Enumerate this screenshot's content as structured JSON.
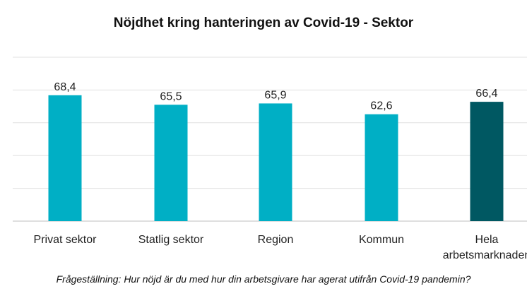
{
  "chart_data": {
    "type": "bar",
    "title": "Nöjdhet kring hanteringen av Covid-19 - Sektor",
    "categories": [
      [
        "Privat sektor"
      ],
      [
        "Statlig sektor"
      ],
      [
        "Region"
      ],
      [
        "Kommun"
      ],
      [
        "Hela",
        "arbetsmarknaden"
      ]
    ],
    "values": [
      68.4,
      65.5,
      65.9,
      62.6,
      66.4
    ],
    "data_labels": [
      "68,4",
      "65,5",
      "65,9",
      "62,6",
      "66,4"
    ],
    "ylim": [
      30,
      80
    ],
    "grid": true,
    "colors": [
      "#00AFC5",
      "#00AFC5",
      "#00AFC5",
      "#00AFC5",
      "#005862"
    ],
    "gridline_color": "#E0E0E0",
    "baseline_color": "#BFBFBF"
  },
  "footnote": "Frågeställning: Hur nöjd är du med hur din arbetsgivare har agerat utifrån Covid-19 pandemin?"
}
